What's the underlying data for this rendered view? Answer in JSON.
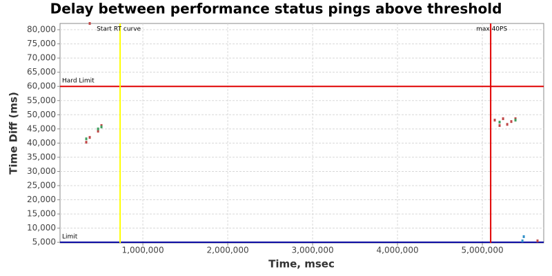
{
  "chart_data": {
    "type": "scatter",
    "title": "Delay between performance status pings above threshold",
    "x_label": "Time, msec",
    "y_label": "Time Diff (ms)",
    "xlim": [
      24000,
      5723000
    ],
    "ylim": [
      4800,
      82200
    ],
    "xticks": [
      {
        "value": 1000000,
        "label": "1,000,000"
      },
      {
        "value": 2000000,
        "label": "2,000,000"
      },
      {
        "value": 3000000,
        "label": "3,000,000"
      },
      {
        "value": 4000000,
        "label": "4,000,000"
      },
      {
        "value": 5000000,
        "label": "5,000,000"
      }
    ],
    "yticks": [
      {
        "value": 5000,
        "label": "5,000"
      },
      {
        "value": 10000,
        "label": "10,000"
      },
      {
        "value": 15000,
        "label": "15,000"
      },
      {
        "value": 20000,
        "label": "20,000"
      },
      {
        "value": 25000,
        "label": "25,000"
      },
      {
        "value": 30000,
        "label": "30,000"
      },
      {
        "value": 35000,
        "label": "35,000"
      },
      {
        "value": 40000,
        "label": "40,000"
      },
      {
        "value": 45000,
        "label": "45,000"
      },
      {
        "value": 50000,
        "label": "50,000"
      },
      {
        "value": 55000,
        "label": "55,000"
      },
      {
        "value": 60000,
        "label": "60,000"
      },
      {
        "value": 65000,
        "label": "65,000"
      },
      {
        "value": 70000,
        "label": "70,000"
      },
      {
        "value": 75000,
        "label": "75,000"
      },
      {
        "value": 80000,
        "label": "80,000"
      }
    ],
    "grid": true,
    "series": [
      {
        "color": "#c04848",
        "x": [
          333000,
          374000,
          472000,
          512000,
          374000,
          5146000,
          5203000,
          5244000,
          5293000,
          5341000,
          5390000,
          5650000
        ],
        "values": [
          40300,
          42000,
          44200,
          46200,
          82200,
          48100,
          46200,
          48600,
          46600,
          47600,
          48600,
          5500
        ]
      },
      {
        "color": "#40a060",
        "x": [
          333000,
          472000,
          512000,
          5203000,
          5390000
        ],
        "values": [
          41500,
          45000,
          45700,
          47400,
          48100
        ]
      },
      {
        "color": "#3090c8",
        "x": [
          5488000,
          5472000
        ],
        "values": [
          7000,
          5500
        ]
      }
    ],
    "vlines": [
      {
        "value": 732000,
        "color": "#ffff00",
        "label": "Start RT curve"
      },
      {
        "value": 5098000,
        "color": "#e00000",
        "label": "max 40PS"
      }
    ],
    "hlines": [
      {
        "value": 60000,
        "color": "#e00000",
        "label": "Hard Limit"
      },
      {
        "value": 5000,
        "color": "#0000a0",
        "label": "Limit"
      }
    ]
  }
}
